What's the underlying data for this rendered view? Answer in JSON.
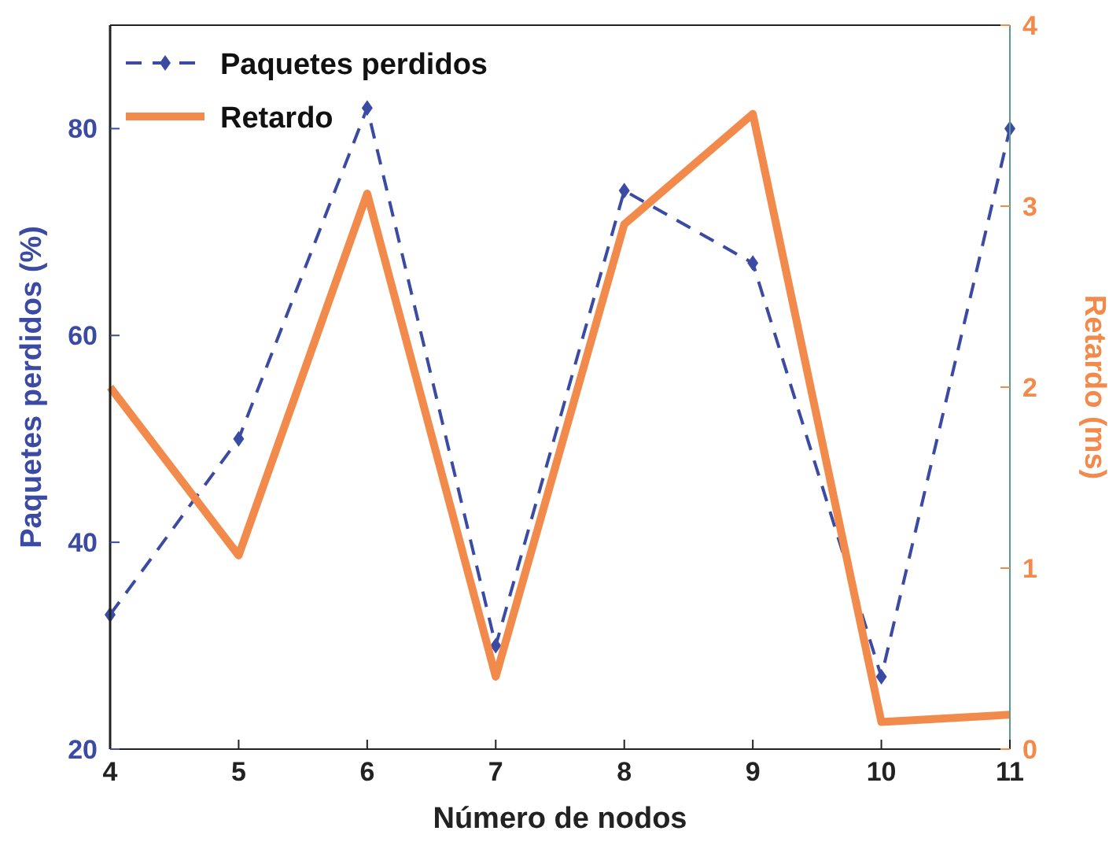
{
  "chart_data": {
    "type": "line",
    "xlabel": "Número de nodos",
    "ylabel": "Paquetes perdidos (%)",
    "y2label": "Retardo (ms)",
    "x": [
      4,
      5,
      6,
      7,
      8,
      9,
      10,
      11
    ],
    "xlim": [
      4,
      11
    ],
    "xticks": [
      4,
      5,
      6,
      7,
      8,
      9,
      10,
      11
    ],
    "ylim": [
      20,
      90
    ],
    "yticks": [
      20,
      40,
      60,
      80
    ],
    "y2lim": [
      0,
      4
    ],
    "y2ticks": [
      0,
      1,
      2,
      3,
      4
    ],
    "legend": "top left",
    "grid": false,
    "series": [
      {
        "name": "Paquetes perdidos",
        "color": "#3b4ba3",
        "values": [
          33,
          50,
          82,
          30,
          74,
          67,
          27,
          80
        ],
        "marker": "diamond",
        "line_style": "dashed"
      },
      {
        "name": "Retardo",
        "color": "#f28a4b",
        "axis": "y2",
        "values": [
          2.0,
          1.07,
          3.07,
          0.4,
          2.9,
          3.51,
          0.15,
          0.19
        ],
        "marker": "none",
        "line_style": "solid"
      }
    ]
  }
}
